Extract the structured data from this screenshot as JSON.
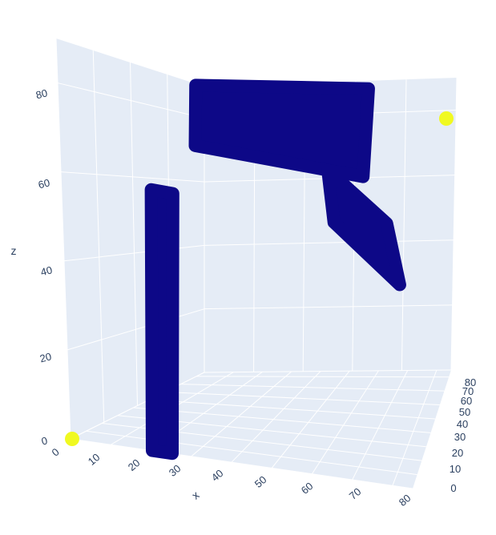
{
  "chart_data": {
    "type": "scatter3d",
    "xlabel": "x",
    "ylabel": "",
    "zlabel": "z",
    "x_ticks": [
      "0",
      "10",
      "20",
      "30",
      "40",
      "50",
      "60",
      "70",
      "80"
    ],
    "y_ticks": [
      "0",
      "10",
      "20",
      "30",
      "40",
      "50",
      "60",
      "70",
      "80"
    ],
    "z_ticks": [
      "0",
      "20",
      "40",
      "60",
      "80"
    ],
    "xlim": [
      0,
      85
    ],
    "ylim": [
      0,
      85
    ],
    "zlim": [
      0,
      90
    ],
    "grid": true,
    "colors": {
      "scene_background": "#e5ecf6",
      "grid": "#ffffff",
      "marker_low": "#0d0887",
      "marker_high": "#f0f921",
      "text": "#2a3f5f"
    },
    "series": [
      {
        "shape": "vertical bar",
        "color": "#0d0887",
        "value": 0,
        "points": [
          {
            "x": 20,
            "y": 0,
            "z": 0
          },
          {
            "x": 20,
            "y": 0,
            "z": 60
          },
          {
            "x": 25,
            "y": 0,
            "z": 60
          },
          {
            "x": 25,
            "y": 0,
            "z": 0
          }
        ]
      },
      {
        "shape": "top plate",
        "color": "#0d0887",
        "value": 0,
        "points": [
          {
            "x": 30,
            "y": 0,
            "z": 72
          },
          {
            "x": 30,
            "y": 0,
            "z": 86
          },
          {
            "x": 68,
            "y": 0,
            "z": 93
          },
          {
            "x": 68,
            "y": 0,
            "z": 72
          }
        ]
      },
      {
        "shape": "diagonal arm",
        "color": "#0d0887",
        "value": 0,
        "points": [
          {
            "x": 60,
            "y": 0,
            "z": 72
          },
          {
            "x": 62,
            "y": 0,
            "z": 60
          },
          {
            "x": 78,
            "y": 0,
            "z": 48
          },
          {
            "x": 74,
            "y": 0,
            "z": 62
          }
        ]
      },
      {
        "shape": "marker",
        "color": "#f0f921",
        "value": 1,
        "points": [
          {
            "x": 0,
            "y": 0,
            "z": 0
          },
          {
            "x": 80,
            "y": 80,
            "z": 80
          }
        ]
      }
    ]
  }
}
